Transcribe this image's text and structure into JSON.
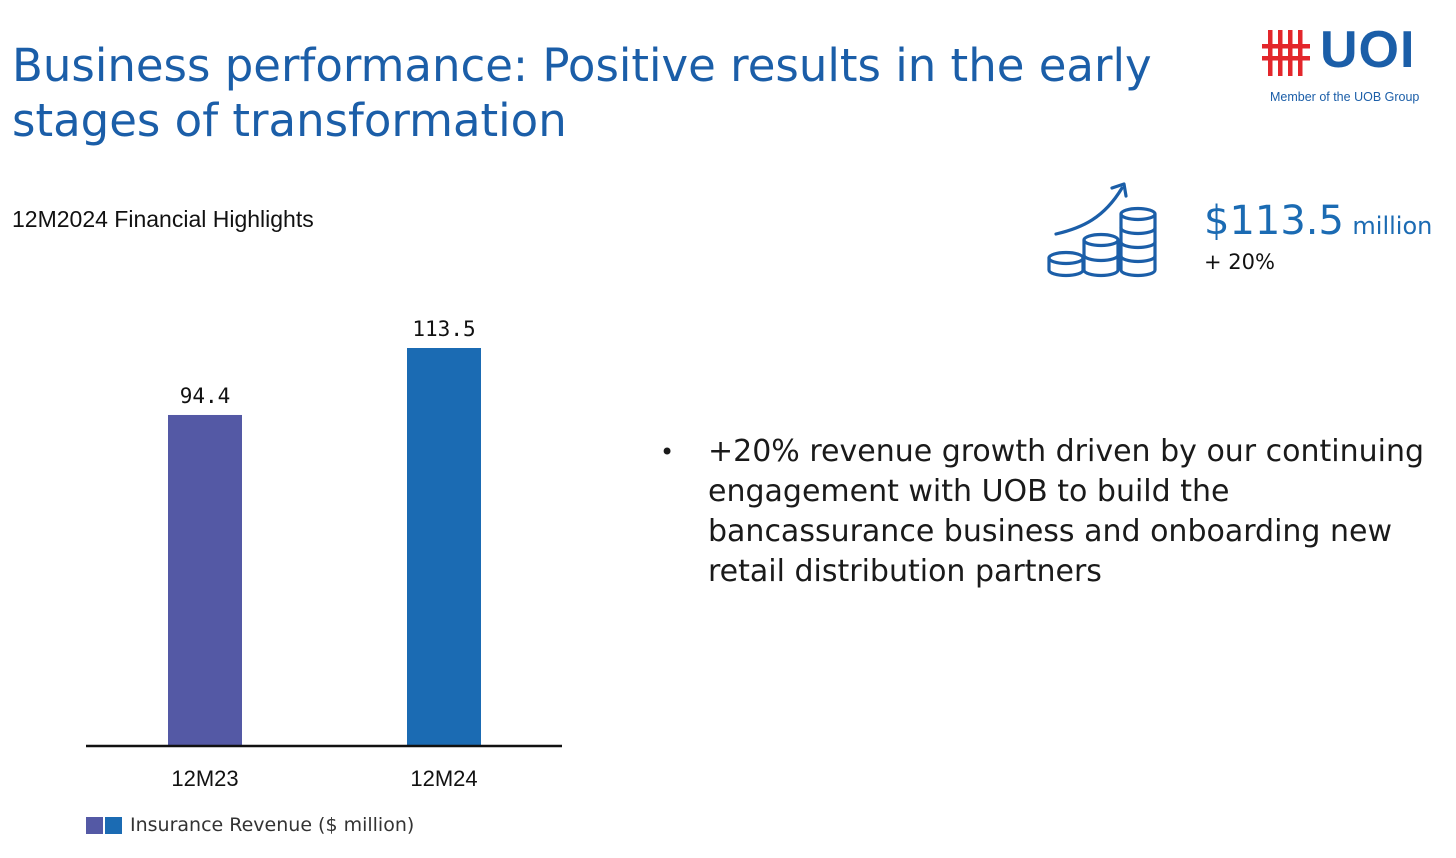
{
  "header": {
    "title": "Business performance: Positive results in the early stages of transformation",
    "logo_text": "UOI",
    "logo_subtitle": "Member of the UOB Group"
  },
  "section": {
    "subtitle": "12M2024 Financial Highlights"
  },
  "kpi": {
    "icon": "coins-growth-icon",
    "value": "$113.5",
    "unit": "million",
    "change": "+ 20%"
  },
  "bullets": [
    "+20% revenue growth driven by our continuing engagement with UOB to build the bancassurance business and onboarding new retail distribution partners"
  ],
  "colors": {
    "title": "#1b5ea8",
    "bar_12M23": "#5459a5",
    "bar_12M24": "#1b6bb3",
    "logo_red": "#e3262b"
  },
  "chart_data": {
    "type": "bar",
    "categories": [
      "12M23",
      "12M24"
    ],
    "values": [
      94.4,
      113.5
    ],
    "value_labels": [
      "94.4",
      "113.5"
    ],
    "bar_colors": [
      "#5459a5",
      "#1b6bb3"
    ],
    "legend": "Insurance Revenue ($ million)",
    "legend_placement": "bottom-left",
    "ylim": [
      0,
      113.5
    ],
    "grid": false,
    "title": "",
    "xlabel": "",
    "ylabel": ""
  }
}
